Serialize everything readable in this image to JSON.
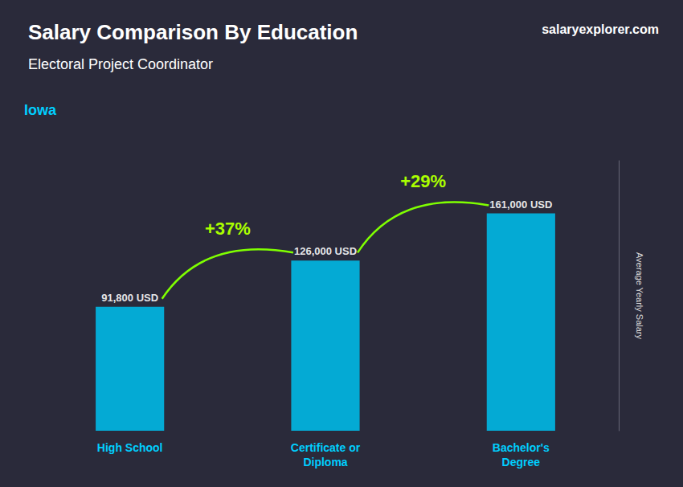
{
  "chart_data": {
    "type": "bar",
    "title": "Salary Comparison By Education",
    "subtitle": "Electoral Project Coordinator",
    "annotations": [
      "Iowa",
      "+37%",
      "+29%",
      "salaryexplorer.com"
    ],
    "ylabel": "Average Yearly Salary",
    "categories": [
      "High School",
      "Certificate or\nDiploma",
      "Bachelor's\nDegree"
    ],
    "values": [
      91800,
      126000,
      161000
    ],
    "value_labels": [
      "91,800 USD",
      "126,000 USD",
      "161,000 USD"
    ],
    "data_labels": true,
    "color": "#00b8e6",
    "ylim": [
      0,
      200000
    ],
    "grid": false,
    "tick_labels": "x"
  }
}
